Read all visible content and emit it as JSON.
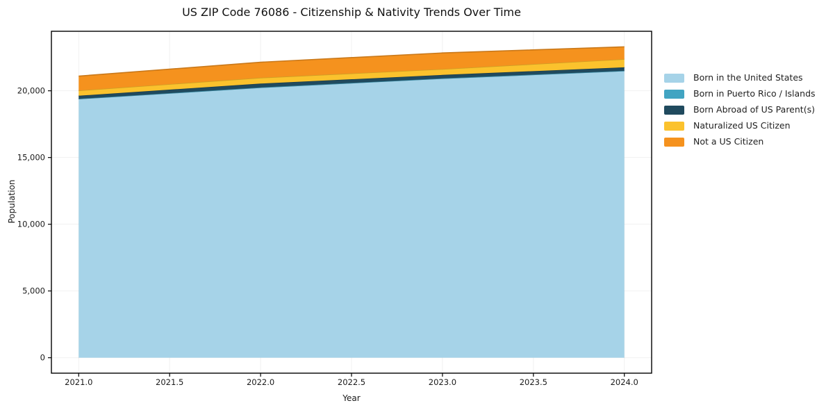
{
  "chart_data": {
    "type": "area",
    "stacked": true,
    "title": "US ZIP Code 76086 - Citizenship & Nativity Trends Over Time",
    "xlabel": "Year",
    "ylabel": "Population",
    "x": [
      2021,
      2022,
      2023,
      2024
    ],
    "series": [
      {
        "name": "Born in the United States",
        "color": "#A6D3E8",
        "values": [
          19400,
          20250,
          20930,
          21500
        ]
      },
      {
        "name": "Born in Puerto Rico / Islands",
        "color": "#41A4C2",
        "values": [
          0,
          0,
          0,
          0
        ]
      },
      {
        "name": "Born Abroad of US Parent(s)",
        "color": "#204A5E",
        "values": [
          230,
          290,
          260,
          260
        ]
      },
      {
        "name": "Naturalized US Citizen",
        "color": "#FBC22D",
        "values": [
          390,
          435,
          435,
          610
        ]
      },
      {
        "name": "Not a US Citizen",
        "color": "#F5921E",
        "values": [
          1080,
          1165,
          1210,
          925
        ]
      }
    ],
    "totals": [
      21100,
      22140,
      22835,
      23295
    ],
    "xlim": [
      2020.85,
      2024.15
    ],
    "ylim": [
      -1160,
      24460
    ],
    "xticks": [
      2021.0,
      2021.5,
      2022.0,
      2022.5,
      2023.0,
      2023.5,
      2024.0
    ],
    "xtick_labels": [
      "2021.0",
      "2021.5",
      "2022.0",
      "2022.5",
      "2023.0",
      "2023.5",
      "2024.0"
    ],
    "yticks": [
      0,
      5000,
      10000,
      15000,
      20000
    ],
    "ytick_labels": [
      "0",
      "5,000",
      "10,000",
      "15,000",
      "20,000"
    ],
    "grid": true,
    "legend_position": "right-outside",
    "frame_color": "#000000",
    "background_color": "#ffffff"
  }
}
